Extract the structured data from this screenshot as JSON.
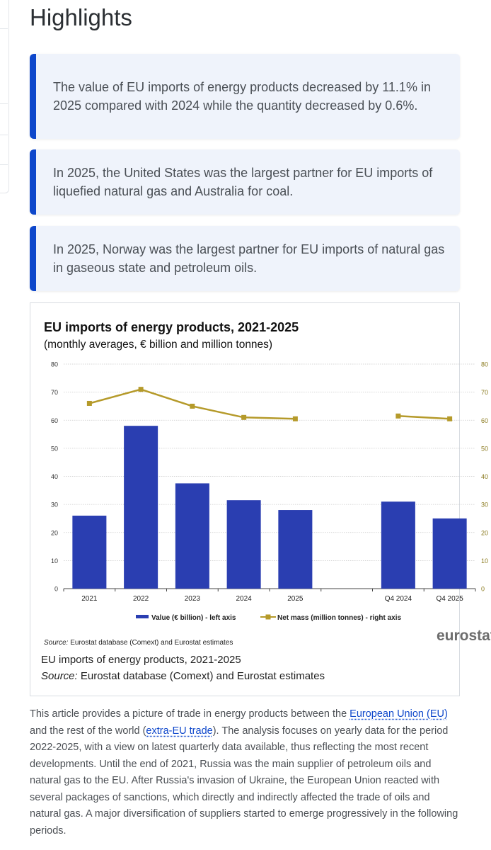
{
  "page": {
    "heading": "Highlights"
  },
  "highlights": [
    "The value of EU imports of energy products decreased by 11.1% in 2025 compared with 2024 while the quantity decreased by 0.6%.",
    "In 2025, the United States was the largest partner for EU imports of liquefied natural gas and Australia for coal.",
    "In 2025, Norway was the largest partner for EU imports of natural gas in gaseous state and petroleum oils."
  ],
  "chart_data": {
    "type": "bar",
    "title": "EU imports of energy products, 2021-2025",
    "subtitle": "(monthly averages, € billion and million tonnes)",
    "categories": [
      "2021",
      "2022",
      "2023",
      "2024",
      "2025",
      "",
      "Q4 2024",
      "Q4 2025"
    ],
    "series": [
      {
        "name": "Value (€ billion) - left axis",
        "kind": "bar",
        "axis": "left",
        "color": "#2a3eb1",
        "values": [
          26,
          58,
          37.5,
          31.5,
          28,
          null,
          31,
          25
        ]
      },
      {
        "name": "Net mass (million tonnes) - right axis",
        "kind": "line",
        "axis": "right",
        "color": "#b59a2a",
        "values": [
          66,
          71,
          65,
          61,
          60.5,
          null,
          61.5,
          60.5
        ]
      }
    ],
    "ylim": [
      0,
      80
    ],
    "y2lim": [
      0,
      80
    ],
    "yticks": [
      "0",
      "10",
      "20",
      "30",
      "40",
      "50",
      "60",
      "70",
      "80"
    ],
    "grid": true,
    "legend": "bottom",
    "source": "Eurostat database (Comext) and Eurostat estimates",
    "source_label": "Source:",
    "logo": "eurostat"
  },
  "figure": {
    "caption": "EU imports of energy products, 2021-2025",
    "source_label": "Source:",
    "source_text": "Eurostat database (Comext) and Eurostat estimates"
  },
  "article": {
    "t1": "This article provides a picture of trade in energy products between the ",
    "link1": "European Union (EU)",
    "t2": " and the rest of the world (",
    "link2": "extra-EU trade",
    "t3": "). The analysis focuses on yearly data for the period 2022-2025, with a view on latest quarterly data available, thus reflecting the most recent developments. Until the end of 2021, Russia was the main supplier of petroleum oils and natural gas to the EU. After Russia's invasion of Ukraine, the European Union reacted with several packages of sanctions, which directly and indirectly affected the trade of oils and natural gas. A major diversification of suppliers started to emerge progressively in the following periods."
  }
}
